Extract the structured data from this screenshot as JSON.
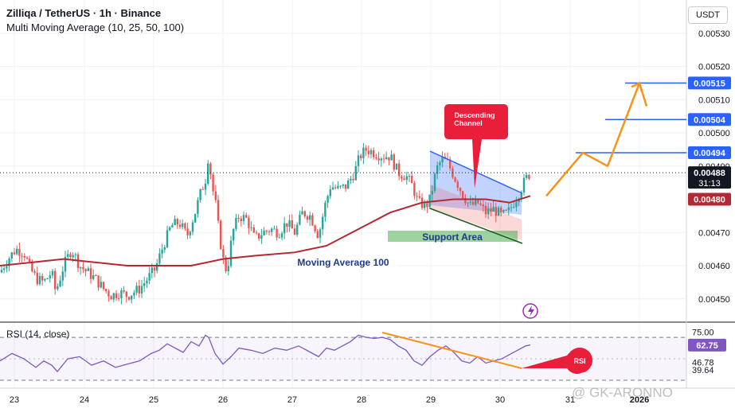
{
  "header": {
    "symbol_line": "Zilliqa / TetherUS · 1h · Binance",
    "indicator_line": "Multi Moving Average (10, 25, 50, 100)",
    "currency_button": "USDT"
  },
  "chart_data": [
    {
      "type": "candlestick",
      "title": "Zilliqa / TetherUS · 1h · Binance",
      "indicator": "Multi Moving Average (10, 25, 50, 100)",
      "ylim": [
        0.00443,
        0.0054
      ],
      "y_ticks": [
        "0.00530",
        "0.00520",
        "0.00510",
        "0.00500",
        "0.00490",
        "0.00470",
        "0.00460",
        "0.00450"
      ],
      "x_ticks": [
        "23",
        "24",
        "25",
        "26",
        "27",
        "28",
        "29",
        "30",
        "31",
        "2026"
      ],
      "grid": true,
      "price_badges": [
        {
          "value": "0.00515",
          "color": "#2962ff"
        },
        {
          "value": "0.00504",
          "color": "#2962ff"
        },
        {
          "value": "0.00494",
          "color": "#2962ff"
        },
        {
          "value": "0.00488",
          "sub": "31:13",
          "color": "#131722"
        },
        {
          "value": "0.00480",
          "color": "#b22833"
        }
      ],
      "last_price": 0.00488,
      "close_trend": [
        [
          0,
          0.00458
        ],
        [
          10,
          0.00462
        ],
        [
          20,
          0.00465
        ],
        [
          30,
          0.00464
        ],
        [
          38,
          0.00459
        ],
        [
          46,
          0.00456
        ],
        [
          55,
          0.00455
        ],
        [
          65,
          0.00458
        ],
        [
          70,
          0.00452
        ],
        [
          80,
          0.0046
        ],
        [
          90,
          0.00465
        ],
        [
          100,
          0.0046
        ],
        [
          110,
          0.00458
        ],
        [
          120,
          0.00456
        ],
        [
          130,
          0.00453
        ],
        [
          140,
          0.00451
        ],
        [
          150,
          0.00452
        ],
        [
          160,
          0.00451
        ],
        [
          175,
          0.00453
        ],
        [
          185,
          0.00456
        ],
        [
          195,
          0.00459
        ],
        [
          205,
          0.00466
        ],
        [
          215,
          0.00472
        ],
        [
          225,
          0.00473
        ],
        [
          235,
          0.00469
        ],
        [
          245,
          0.00476
        ],
        [
          252,
          0.00482
        ],
        [
          258,
          0.00486
        ],
        [
          262,
          0.00494
        ],
        [
          266,
          0.00484
        ],
        [
          270,
          0.0048
        ],
        [
          275,
          0.0047
        ],
        [
          280,
          0.00462
        ],
        [
          285,
          0.00458
        ],
        [
          292,
          0.0047
        ],
        [
          300,
          0.00475
        ],
        [
          310,
          0.00474
        ],
        [
          320,
          0.00468
        ],
        [
          330,
          0.0047
        ],
        [
          340,
          0.00471
        ],
        [
          350,
          0.0047
        ],
        [
          360,
          0.00473
        ],
        [
          370,
          0.0047
        ],
        [
          380,
          0.00476
        ],
        [
          390,
          0.00475
        ],
        [
          400,
          0.00469
        ],
        [
          408,
          0.00478
        ],
        [
          415,
          0.00484
        ],
        [
          425,
          0.00483
        ],
        [
          435,
          0.00484
        ],
        [
          445,
          0.00488
        ],
        [
          452,
          0.00493
        ],
        [
          460,
          0.00495
        ],
        [
          470,
          0.00494
        ],
        [
          480,
          0.00493
        ],
        [
          490,
          0.00493
        ],
        [
          500,
          0.00488
        ],
        [
          510,
          0.00487
        ],
        [
          518,
          0.00484
        ],
        [
          525,
          0.00479
        ],
        [
          535,
          0.00478
        ],
        [
          540,
          0.0048
        ],
        [
          548,
          0.00489
        ],
        [
          555,
          0.00492
        ],
        [
          562,
          0.00491
        ],
        [
          570,
          0.00487
        ],
        [
          580,
          0.00482
        ],
        [
          590,
          0.00478
        ],
        [
          600,
          0.00479
        ],
        [
          610,
          0.00476
        ],
        [
          620,
          0.00477
        ],
        [
          630,
          0.00475
        ],
        [
          638,
          0.00476
        ],
        [
          645,
          0.00479
        ],
        [
          652,
          0.00482
        ],
        [
          660,
          0.00486
        ],
        [
          666,
          0.00488
        ]
      ],
      "moving_average_100": [
        [
          0,
          0.0046
        ],
        [
          40,
          0.00461
        ],
        [
          80,
          0.00462
        ],
        [
          120,
          0.00461
        ],
        [
          160,
          0.0046
        ],
        [
          200,
          0.0046
        ],
        [
          240,
          0.0046
        ],
        [
          280,
          0.00462
        ],
        [
          320,
          0.00463
        ],
        [
          370,
          0.00464
        ],
        [
          410,
          0.00466
        ],
        [
          450,
          0.00471
        ],
        [
          490,
          0.00476
        ],
        [
          530,
          0.00479
        ],
        [
          570,
          0.0048
        ],
        [
          610,
          0.0048
        ],
        [
          640,
          0.00479
        ],
        [
          666,
          0.00481
        ]
      ],
      "projection": [
        [
          686,
          0.00481
        ],
        [
          732,
          0.00494
        ],
        [
          763,
          0.0049
        ],
        [
          803,
          0.00515
        ],
        [
          812,
          0.00508
        ]
      ],
      "annotations": [
        {
          "label": "Descending Channel",
          "type": "callout"
        },
        {
          "label": "Support Area",
          "type": "zone",
          "range": [
            0.00469,
            0.00471
          ]
        },
        {
          "label": "Moving Average 100",
          "type": "label"
        }
      ],
      "levels": [
        0.00515,
        0.00504,
        0.00494
      ]
    },
    {
      "type": "line",
      "title": "RSI (14, close)",
      "ylim": [
        30,
        82
      ],
      "y_ticks": [
        "75.00",
        "46.78",
        "39.64"
      ],
      "current": "62.75",
      "overbought": 70,
      "oversold": 30,
      "values": [
        [
          0,
          48
        ],
        [
          15,
          55
        ],
        [
          30,
          50
        ],
        [
          45,
          42
        ],
        [
          55,
          48
        ],
        [
          65,
          44
        ],
        [
          72,
          38
        ],
        [
          85,
          50
        ],
        [
          100,
          52
        ],
        [
          115,
          44
        ],
        [
          130,
          48
        ],
        [
          145,
          42
        ],
        [
          160,
          45
        ],
        [
          175,
          48
        ],
        [
          190,
          55
        ],
        [
          200,
          58
        ],
        [
          210,
          64
        ],
        [
          220,
          60
        ],
        [
          230,
          56
        ],
        [
          240,
          66
        ],
        [
          250,
          62
        ],
        [
          258,
          72
        ],
        [
          262,
          70
        ],
        [
          270,
          55
        ],
        [
          280,
          45
        ],
        [
          290,
          52
        ],
        [
          300,
          60
        ],
        [
          315,
          58
        ],
        [
          330,
          55
        ],
        [
          345,
          60
        ],
        [
          360,
          58
        ],
        [
          375,
          62
        ],
        [
          390,
          56
        ],
        [
          400,
          52
        ],
        [
          410,
          60
        ],
        [
          420,
          58
        ],
        [
          430,
          62
        ],
        [
          440,
          66
        ],
        [
          450,
          72
        ],
        [
          460,
          70
        ],
        [
          470,
          69
        ],
        [
          480,
          70
        ],
        [
          490,
          68
        ],
        [
          500,
          62
        ],
        [
          510,
          58
        ],
        [
          520,
          48
        ],
        [
          530,
          44
        ],
        [
          540,
          52
        ],
        [
          550,
          58
        ],
        [
          560,
          62
        ],
        [
          570,
          56
        ],
        [
          580,
          48
        ],
        [
          590,
          46
        ],
        [
          600,
          52
        ],
        [
          610,
          46
        ],
        [
          620,
          48
        ],
        [
          630,
          50
        ],
        [
          640,
          54
        ],
        [
          650,
          58
        ],
        [
          660,
          62
        ],
        [
          666,
          63
        ]
      ],
      "annotations": [
        {
          "label": "RSI",
          "type": "callout"
        }
      ]
    }
  ],
  "watermark": "@ GK-ARONNO",
  "colors": {
    "up": "#26a69a",
    "down": "#ef5350",
    "ma100": "#b22833",
    "projection": "#f7931a",
    "level": "#2962ff",
    "rsi": "#7e57c2"
  }
}
